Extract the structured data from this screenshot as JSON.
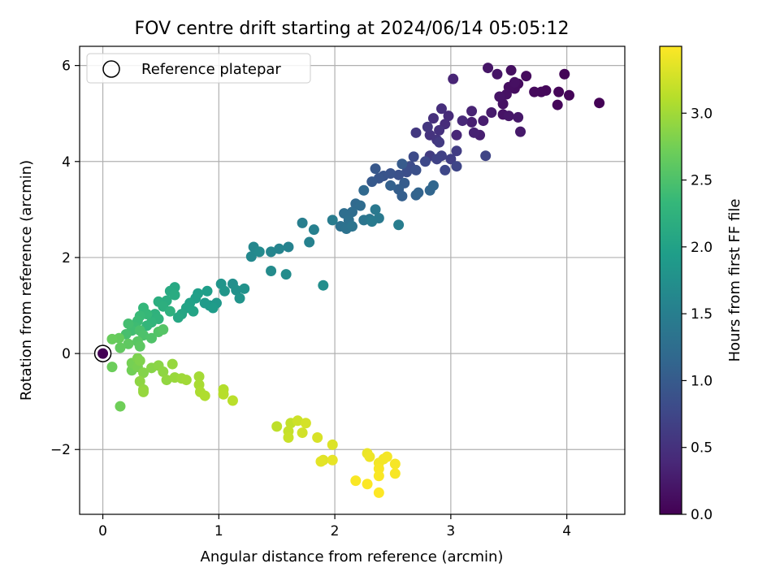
{
  "chart_data": {
    "type": "scatter",
    "title": "FOV centre drift starting at 2024/06/14 05:05:12",
    "xlabel": "Angular distance from reference (arcmin)",
    "ylabel": "Rotation from reference (arcmin)",
    "xlim": [
      -0.2,
      4.5
    ],
    "ylim": [
      -3.35,
      6.4
    ],
    "xticks": [
      0,
      1,
      2,
      3,
      4
    ],
    "yticks": [
      -2,
      0,
      2,
      4,
      6
    ],
    "grid": true,
    "legend": {
      "position": "top-left",
      "entries": [
        "Reference platepar"
      ]
    },
    "reference_point": {
      "x": 0,
      "y": 0
    },
    "colorbar": {
      "label": "Hours from first FF file",
      "range": [
        0,
        3.5
      ],
      "ticks": [
        0.0,
        0.5,
        1.0,
        1.5,
        2.0,
        2.5,
        3.0
      ],
      "tick_labels": [
        "0.0",
        "0.5",
        "1.0",
        "1.5",
        "2.0",
        "2.5",
        "3.0"
      ],
      "colormap": [
        "#440154",
        "#482878",
        "#3e4989",
        "#31688e",
        "#26828e",
        "#1f9e89",
        "#35b779",
        "#6ece58",
        "#b5de2b",
        "#fde725"
      ]
    },
    "points": [
      [
        4.28,
        5.22,
        0.02
      ],
      [
        3.98,
        5.82,
        0.03
      ],
      [
        4.02,
        5.38,
        0.04
      ],
      [
        3.93,
        5.45,
        0.05
      ],
      [
        3.92,
        5.18,
        0.06
      ],
      [
        3.82,
        5.48,
        0.07
      ],
      [
        3.78,
        5.45,
        0.08
      ],
      [
        3.72,
        5.45,
        0.09
      ],
      [
        3.65,
        5.78,
        0.1
      ],
      [
        3.58,
        5.62,
        0.11
      ],
      [
        3.55,
        5.52,
        0.12
      ],
      [
        3.5,
        5.55,
        0.13
      ],
      [
        3.52,
        5.9,
        0.14
      ],
      [
        3.55,
        5.65,
        0.15
      ],
      [
        3.48,
        5.4,
        0.16
      ],
      [
        3.45,
        5.2,
        0.17
      ],
      [
        3.45,
        4.98,
        0.18
      ],
      [
        3.42,
        5.35,
        0.19
      ],
      [
        3.4,
        5.82,
        0.2
      ],
      [
        3.32,
        5.95,
        0.21
      ],
      [
        3.5,
        4.95,
        0.22
      ],
      [
        3.58,
        4.92,
        0.23
      ],
      [
        3.6,
        4.62,
        0.24
      ],
      [
        3.35,
        5.02,
        0.26
      ],
      [
        3.28,
        4.85,
        0.28
      ],
      [
        3.25,
        4.55,
        0.3
      ],
      [
        3.18,
        4.82,
        0.31
      ],
      [
        3.2,
        4.6,
        0.33
      ],
      [
        3.18,
        5.05,
        0.35
      ],
      [
        3.02,
        5.72,
        0.36
      ],
      [
        3.05,
        4.55,
        0.38
      ],
      [
        3.1,
        4.85,
        0.4
      ],
      [
        2.98,
        4.95,
        0.42
      ],
      [
        2.95,
        4.78,
        0.44
      ],
      [
        2.92,
        5.1,
        0.46
      ],
      [
        2.85,
        4.9,
        0.48
      ],
      [
        2.9,
        4.65,
        0.5
      ],
      [
        2.82,
        4.55,
        0.52
      ],
      [
        2.88,
        4.45,
        0.54
      ],
      [
        2.8,
        4.72,
        0.56
      ],
      [
        2.7,
        4.6,
        0.58
      ],
      [
        2.9,
        4.4,
        0.6
      ],
      [
        2.82,
        4.12,
        0.62
      ],
      [
        3.05,
        4.22,
        0.64
      ],
      [
        3.0,
        4.05,
        0.66
      ],
      [
        2.92,
        4.12,
        0.68
      ],
      [
        2.88,
        4.05,
        0.7
      ],
      [
        3.3,
        4.12,
        0.72
      ],
      [
        3.05,
        3.9,
        0.74
      ],
      [
        2.95,
        3.82,
        0.76
      ],
      [
        2.78,
        4.0,
        0.78
      ],
      [
        2.68,
        4.1,
        0.8
      ],
      [
        2.65,
        3.9,
        0.82
      ],
      [
        2.62,
        3.78,
        0.84
      ],
      [
        2.7,
        3.82,
        0.86
      ],
      [
        2.55,
        3.72,
        0.88
      ],
      [
        2.48,
        3.75,
        0.9
      ],
      [
        2.42,
        3.7,
        0.92
      ],
      [
        2.38,
        3.65,
        0.94
      ],
      [
        2.35,
        3.85,
        0.96
      ],
      [
        2.32,
        3.58,
        0.98
      ],
      [
        2.58,
        3.95,
        1.0
      ],
      [
        2.6,
        3.55,
        1.02
      ],
      [
        2.55,
        3.42,
        1.04
      ],
      [
        2.58,
        3.28,
        1.06
      ],
      [
        2.48,
        3.5,
        1.08
      ],
      [
        2.7,
        3.3,
        1.1
      ],
      [
        2.72,
        3.35,
        1.12
      ],
      [
        2.82,
        3.4,
        1.14
      ],
      [
        2.85,
        3.5,
        1.16
      ],
      [
        2.25,
        3.4,
        1.18
      ],
      [
        2.18,
        3.12,
        1.2
      ],
      [
        2.22,
        3.08,
        1.22
      ],
      [
        2.15,
        2.95,
        1.24
      ],
      [
        2.08,
        2.92,
        1.26
      ],
      [
        2.12,
        2.78,
        1.28
      ],
      [
        2.05,
        2.65,
        1.3
      ],
      [
        2.1,
        2.6,
        1.32
      ],
      [
        2.15,
        2.65,
        1.34
      ],
      [
        2.25,
        2.78,
        1.36
      ],
      [
        2.3,
        2.8,
        1.38
      ],
      [
        2.35,
        3.0,
        1.4
      ],
      [
        2.38,
        2.82,
        1.42
      ],
      [
        2.32,
        2.75,
        1.44
      ],
      [
        1.98,
        2.78,
        1.46
      ],
      [
        2.55,
        2.68,
        1.48
      ],
      [
        1.72,
        2.72,
        1.5
      ],
      [
        1.82,
        2.58,
        1.52
      ],
      [
        1.78,
        2.32,
        1.54
      ],
      [
        1.6,
        2.22,
        1.56
      ],
      [
        1.52,
        2.18,
        1.58
      ],
      [
        1.45,
        2.12,
        1.6
      ],
      [
        1.3,
        2.22,
        1.62
      ],
      [
        1.28,
        2.02,
        1.64
      ],
      [
        1.35,
        2.12,
        1.66
      ],
      [
        1.45,
        1.72,
        1.68
      ],
      [
        1.58,
        1.65,
        1.7
      ],
      [
        1.9,
        1.42,
        1.72
      ],
      [
        1.12,
        1.45,
        1.74
      ],
      [
        1.15,
        1.32,
        1.76
      ],
      [
        1.22,
        1.35,
        1.78
      ],
      [
        1.18,
        1.15,
        1.8
      ],
      [
        1.02,
        1.45,
        1.82
      ],
      [
        1.05,
        1.3,
        1.84
      ],
      [
        0.98,
        1.05,
        1.86
      ],
      [
        0.92,
        1.0,
        1.88
      ],
      [
        0.88,
        1.05,
        1.9
      ],
      [
        0.95,
        0.95,
        1.92
      ],
      [
        0.9,
        1.3,
        1.94
      ],
      [
        0.82,
        1.25,
        1.96
      ],
      [
        0.8,
        1.15,
        1.98
      ],
      [
        0.75,
        1.05,
        2.0
      ],
      [
        0.72,
        0.95,
        2.02
      ],
      [
        0.78,
        0.88,
        2.04
      ],
      [
        0.68,
        0.82,
        2.06
      ],
      [
        0.65,
        0.75,
        2.08
      ],
      [
        0.62,
        1.38,
        2.1
      ],
      [
        0.58,
        1.3,
        2.12
      ],
      [
        0.62,
        1.22,
        2.14
      ],
      [
        0.55,
        1.1,
        2.16
      ],
      [
        0.48,
        1.08,
        2.18
      ],
      [
        0.52,
        0.98,
        2.2
      ],
      [
        0.58,
        0.88,
        2.22
      ],
      [
        0.45,
        0.82,
        2.24
      ],
      [
        0.48,
        0.72,
        2.26
      ],
      [
        0.42,
        0.65,
        2.28
      ],
      [
        0.38,
        0.58,
        2.3
      ],
      [
        0.35,
        0.95,
        2.32
      ],
      [
        0.38,
        0.82,
        2.34
      ],
      [
        0.32,
        0.78,
        2.36
      ],
      [
        0.3,
        0.68,
        2.38
      ],
      [
        0.28,
        0.55,
        2.4
      ],
      [
        0.25,
        0.48,
        2.42
      ],
      [
        0.22,
        0.62,
        2.44
      ],
      [
        0.2,
        0.4,
        2.46
      ],
      [
        0.32,
        0.48,
        2.48
      ],
      [
        0.35,
        0.38,
        2.5
      ],
      [
        0.42,
        0.32,
        2.52
      ],
      [
        0.48,
        0.45,
        2.54
      ],
      [
        0.52,
        0.5,
        2.56
      ],
      [
        0.3,
        0.25,
        2.58
      ],
      [
        0.32,
        0.15,
        2.6
      ],
      [
        0.22,
        0.2,
        2.62
      ],
      [
        0.15,
        0.12,
        2.64
      ],
      [
        0.14,
        0.32,
        2.66
      ],
      [
        0.08,
        0.3,
        2.68
      ],
      [
        0.08,
        -0.28,
        2.7
      ],
      [
        0.15,
        -1.1,
        2.72
      ],
      [
        0.25,
        -0.35,
        2.74
      ],
      [
        0.25,
        -0.2,
        2.76
      ],
      [
        0.3,
        -0.28,
        2.78
      ],
      [
        0.3,
        -0.1,
        2.8
      ],
      [
        0.32,
        -0.15,
        2.82
      ],
      [
        0.35,
        -0.4,
        2.84
      ],
      [
        0.42,
        -0.3,
        2.86
      ],
      [
        0.48,
        -0.25,
        2.88
      ],
      [
        0.52,
        -0.38,
        2.9
      ],
      [
        0.55,
        -0.55,
        2.92
      ],
      [
        0.6,
        -0.22,
        2.94
      ],
      [
        0.62,
        -0.5,
        2.96
      ],
      [
        0.68,
        -0.52,
        2.98
      ],
      [
        0.72,
        -0.55,
        3.0
      ],
      [
        0.32,
        -0.58,
        2.9
      ],
      [
        0.35,
        -0.75,
        2.92
      ],
      [
        0.35,
        -0.8,
        2.94
      ],
      [
        0.83,
        -0.48,
        3.02
      ],
      [
        0.83,
        -0.65,
        3.04
      ],
      [
        0.84,
        -0.8,
        3.06
      ],
      [
        0.88,
        -0.88,
        3.08
      ],
      [
        1.04,
        -0.75,
        3.1
      ],
      [
        1.04,
        -0.85,
        3.12
      ],
      [
        1.12,
        -0.98,
        3.14
      ],
      [
        1.5,
        -1.52,
        3.16
      ],
      [
        1.62,
        -1.45,
        3.18
      ],
      [
        1.6,
        -1.62,
        3.2
      ],
      [
        1.6,
        -1.75,
        3.22
      ],
      [
        1.68,
        -1.4,
        3.24
      ],
      [
        1.72,
        -1.65,
        3.26
      ],
      [
        1.75,
        -1.45,
        3.28
      ],
      [
        1.85,
        -1.75,
        3.3
      ],
      [
        1.98,
        -1.9,
        3.32
      ],
      [
        1.9,
        -2.22,
        3.34
      ],
      [
        1.88,
        -2.25,
        3.36
      ],
      [
        1.98,
        -2.22,
        3.38
      ],
      [
        2.28,
        -2.08,
        3.4
      ],
      [
        2.3,
        -2.15,
        3.42
      ],
      [
        2.38,
        -2.28,
        3.44
      ],
      [
        2.42,
        -2.2,
        3.44
      ],
      [
        2.45,
        -2.15,
        3.45
      ],
      [
        2.52,
        -2.3,
        3.46
      ],
      [
        2.52,
        -2.5,
        3.47
      ],
      [
        2.38,
        -2.4,
        3.47
      ],
      [
        2.38,
        -2.55,
        3.48
      ],
      [
        2.18,
        -2.65,
        3.48
      ],
      [
        2.28,
        -2.72,
        3.49
      ],
      [
        2.38,
        -2.9,
        3.5
      ]
    ]
  }
}
